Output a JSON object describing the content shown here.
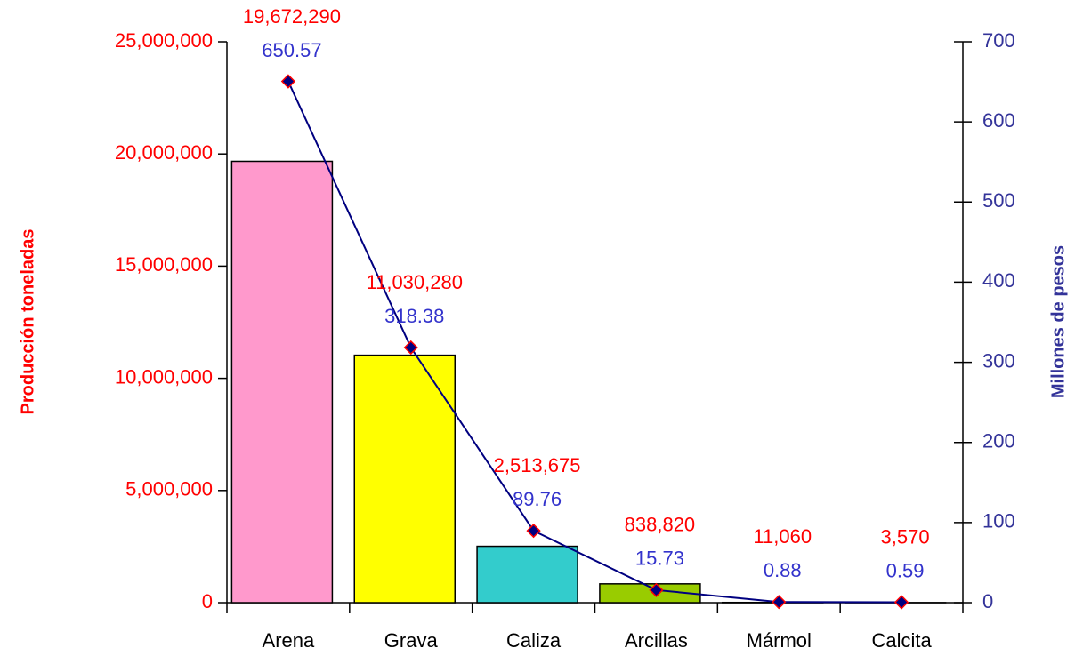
{
  "chart_data": {
    "type": "bar",
    "categories": [
      "Arena",
      "Grava",
      "Caliza",
      "Arcillas",
      "Mármol",
      "Calcita"
    ],
    "ylabel": "Producción toneladas",
    "y2label": "Millones de pesos",
    "ylim": [
      0,
      25000000
    ],
    "yticks": [
      0,
      {
        "value": 5000000,
        "label": "5,000,000"
      },
      {
        "value": 10000000,
        "label": "10,000,000"
      },
      {
        "value": 15000000,
        "label": "15,000,000"
      },
      {
        "value": 20000000,
        "label": "20,000,000"
      },
      {
        "value": 25000000,
        "label": "25,000,000"
      }
    ],
    "y2lim": [
      0,
      700
    ],
    "y2ticks": [
      0,
      100,
      200,
      300,
      400,
      500,
      600,
      700
    ],
    "series": [
      {
        "name": "Producción toneladas",
        "type": "bar",
        "axis": "y",
        "label_color": "#ff0000",
        "colors": [
          "#ff99cc",
          "#ffff00",
          "#33cccc",
          "#99cc00",
          "#cccccc",
          "#cccccc"
        ],
        "values": [
          19672290,
          11030280,
          2513675,
          838820,
          11060,
          3570
        ],
        "value_labels": [
          "19,672,290",
          "11,030,280",
          "2,513,675",
          "838,820",
          "11,060",
          "3,570"
        ]
      },
      {
        "name": "Millones de pesos",
        "type": "line",
        "axis": "y2",
        "color": "#000080",
        "label_color": "#3333cc",
        "marker_color": "#ff0000",
        "values": [
          650.57,
          318.38,
          89.76,
          15.73,
          0.88,
          0.59
        ]
      }
    ]
  }
}
